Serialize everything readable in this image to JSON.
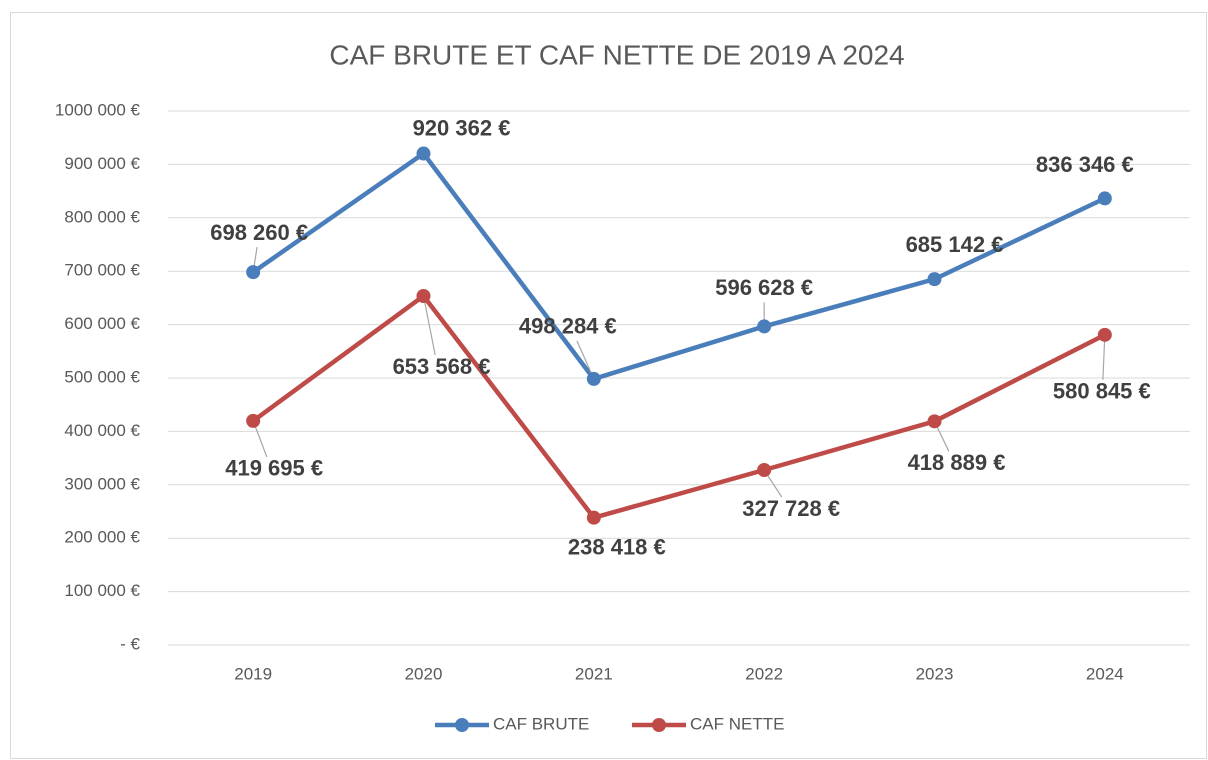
{
  "chart_data": {
    "type": "line",
    "title": "CAF BRUTE ET CAF NETTE DE 2019 A 2024",
    "categories": [
      "2019",
      "2020",
      "2021",
      "2022",
      "2023",
      "2024"
    ],
    "series": [
      {
        "name": "CAF BRUTE",
        "color": "#4a7ebb",
        "values": [
          698260,
          920362,
          498284,
          596628,
          685142,
          836346
        ],
        "value_labels": [
          "698 260 €",
          "920 362 €",
          "498 284 €",
          "596 628 €",
          "685 142 €",
          "836 346 €"
        ]
      },
      {
        "name": "CAF NETTE",
        "color": "#be4b48",
        "values": [
          419695,
          653568,
          238418,
          327728,
          418889,
          580845
        ],
        "value_labels": [
          "419 695 €",
          "653 568 €",
          "238 418 €",
          "327 728 €",
          "418 889 €",
          "580 845 €"
        ]
      }
    ],
    "ylim": [
      0,
      1000000
    ],
    "yticks": [
      {
        "value": 0,
        "label": "-  €"
      },
      {
        "value": 100000,
        "label": "100 000 €"
      },
      {
        "value": 200000,
        "label": "200 000 €"
      },
      {
        "value": 300000,
        "label": "300 000 €"
      },
      {
        "value": 400000,
        "label": "400 000 €"
      },
      {
        "value": 500000,
        "label": "500 000 €"
      },
      {
        "value": 600000,
        "label": "600 000 €"
      },
      {
        "value": 700000,
        "label": "700 000 €"
      },
      {
        "value": 800000,
        "label": "800 000 €"
      },
      {
        "value": 900000,
        "label": "900 000 €"
      },
      {
        "value": 1000000,
        "label": "1000 000 €"
      }
    ],
    "grid": true,
    "legend": "bottom"
  }
}
